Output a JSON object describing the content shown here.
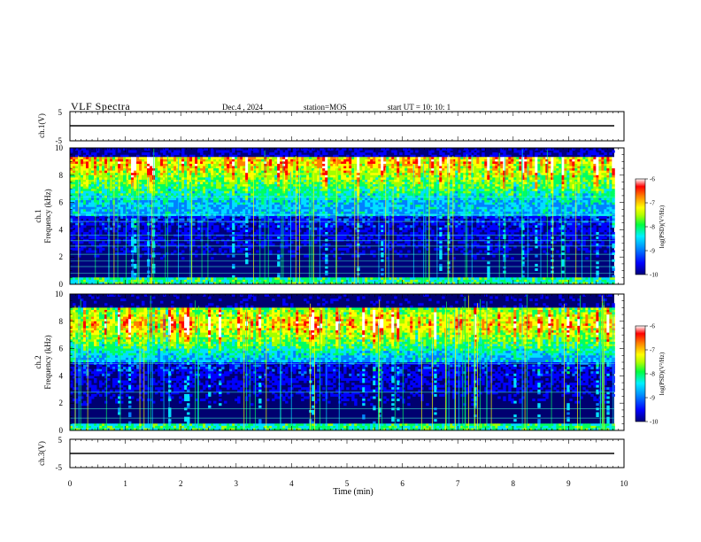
{
  "header": {
    "title": "VLF Spectra",
    "date": "Dec.4  , 2024",
    "station": "station=MOS",
    "start": "start  UT =   10: 10: 1"
  },
  "colors": {
    "colormap": [
      "#00007a",
      "#0000ff",
      "#0080ff",
      "#00e0ff",
      "#00ff60",
      "#a0ff00",
      "#ffff00",
      "#ff8000",
      "#ff0000",
      "#ffffff"
    ]
  },
  "chart_data": [
    {
      "type": "line",
      "name": "ch1-waveform",
      "ylabel": "ch.1(V)",
      "ylim": [
        -5,
        5
      ],
      "yticks": [
        "5",
        "-5"
      ],
      "x": [
        0,
        9.83
      ],
      "y": [
        0,
        0
      ]
    },
    {
      "type": "heatmap",
      "name": "ch1-spectrogram",
      "ylabel": "ch.1\nFrequency (kHz)",
      "ylim": [
        0,
        10
      ],
      "yticks": [
        "0",
        "2",
        "4",
        "6",
        "8",
        "10"
      ],
      "xlim": [
        0,
        10
      ],
      "data_extent_min": 9.83,
      "emission_band_khz": [
        5,
        10
      ],
      "colorbar": {
        "label": "log(PSD)(V²/Hz)",
        "range": [
          -10,
          -6
        ],
        "ticks": [
          "-6",
          "-7",
          "-8",
          "-9",
          "-10"
        ]
      }
    },
    {
      "type": "heatmap",
      "name": "ch2-spectrogram",
      "ylabel": "ch.2\nFrequency (kHz)",
      "ylim": [
        0,
        10
      ],
      "yticks": [
        "0",
        "2",
        "4",
        "6",
        "8",
        "10"
      ],
      "xlim": [
        0,
        10
      ],
      "data_extent_min": 9.83,
      "emission_band_khz": [
        5,
        9
      ],
      "colorbar": {
        "label": "log(PSD)(V²/Hz)",
        "range": [
          -10,
          -6
        ],
        "ticks": [
          "-6",
          "-7",
          "-8",
          "-9",
          "-10"
        ]
      }
    },
    {
      "type": "line",
      "name": "ch3-waveform",
      "ylabel": "ch.3(V)",
      "ylim": [
        -5,
        5
      ],
      "yticks": [
        "5",
        "-5"
      ],
      "x": [
        0,
        9.83
      ],
      "y": [
        0,
        0
      ]
    },
    {
      "type": "axis",
      "name": "time-axis",
      "xlabel": "Time  (min)",
      "xlim": [
        0,
        10
      ],
      "xticks": [
        "0",
        "1",
        "2",
        "3",
        "4",
        "5",
        "6",
        "7",
        "8",
        "9",
        "10"
      ]
    }
  ]
}
